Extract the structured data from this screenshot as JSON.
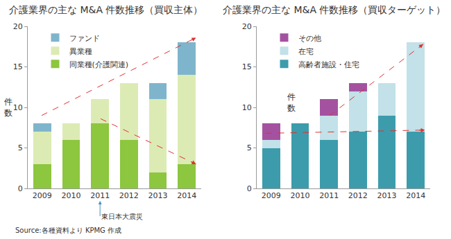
{
  "chart_data": [
    {
      "type": "bar",
      "title": "介護業界の主な M&A 件数推移（買収主体）",
      "ylabel": "件数",
      "categories": [
        "2009",
        "2010",
        "2011",
        "2012",
        "2013",
        "2014"
      ],
      "series": [
        {
          "name": "同業種(介護関連)",
          "color": "#8dc63f",
          "values": [
            3,
            6,
            8,
            6,
            2,
            3
          ]
        },
        {
          "name": "異業種",
          "color": "#dcebb4",
          "values": [
            4,
            2,
            3,
            7,
            9,
            11
          ]
        },
        {
          "name": "ファンド",
          "color": "#7fb5cc",
          "values": [
            1,
            0,
            0,
            0,
            2,
            4
          ]
        }
      ],
      "ylim": [
        0,
        20
      ],
      "yticks": [
        0,
        5,
        10,
        15,
        20
      ],
      "stacked": true,
      "grid": false,
      "legend": "upper left",
      "annotations": [
        {
          "text": "東日本大震災",
          "category": "2011"
        }
      ]
    },
    {
      "type": "bar",
      "title": "介護業界の主な M&A 件数推移（買収ターゲット）",
      "ylabel": "件数",
      "categories": [
        "2009",
        "2010",
        "2011",
        "2012",
        "2013",
        "2014"
      ],
      "series": [
        {
          "name": "高齢者施設・住宅",
          "color": "#3c9cac",
          "values": [
            5,
            8,
            6,
            7,
            9,
            7
          ]
        },
        {
          "name": "在宅",
          "color": "#c2e1e8",
          "values": [
            1,
            0,
            3,
            5,
            4,
            11
          ]
        },
        {
          "name": "その他",
          "color": "#a452a0",
          "values": [
            2,
            0,
            2,
            1,
            0,
            0
          ]
        }
      ],
      "ylim": [
        0,
        20
      ],
      "yticks": [
        0,
        5,
        10,
        15,
        20
      ],
      "stacked": true,
      "grid": false,
      "legend": "upper left"
    }
  ],
  "source": "Source:各種資料より KPMG 作成"
}
